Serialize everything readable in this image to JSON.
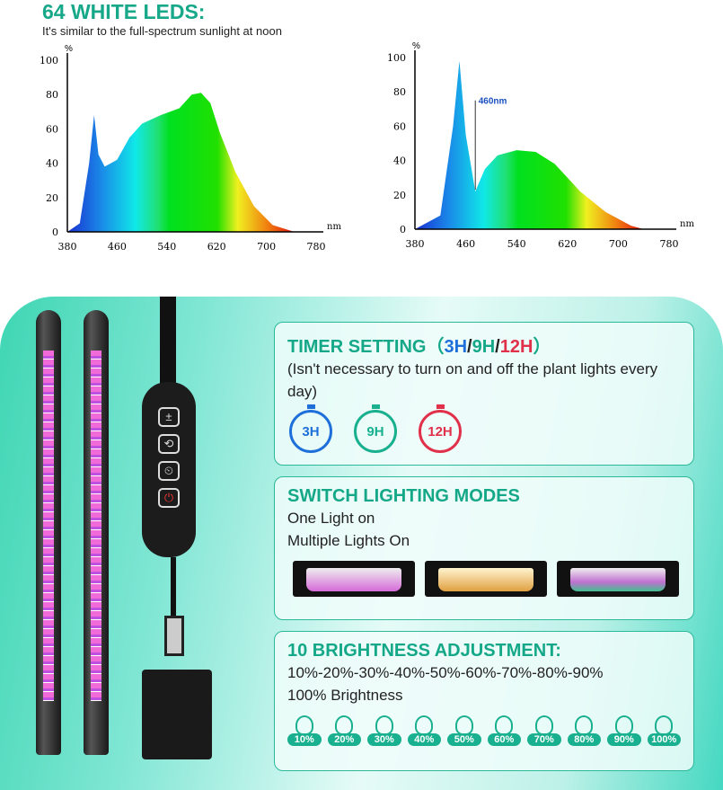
{
  "header": {
    "title": "64 WHITE LEDS:",
    "subtitle": "It's similar to the full-spectrum sunlight at noon"
  },
  "chart_data": [
    {
      "type": "area",
      "xlabel": "nm",
      "ylabel": "%",
      "xlim": [
        380,
        780
      ],
      "ylim": [
        0,
        100
      ],
      "xticks": [
        "380",
        "460",
        "540",
        "620",
        "700",
        "780"
      ],
      "yticks": [
        "0",
        "20",
        "40",
        "60",
        "80",
        "100"
      ],
      "fill": "visible spectrum gradient",
      "x": [
        380,
        400,
        415,
        423,
        430,
        440,
        460,
        480,
        500,
        530,
        560,
        580,
        595,
        610,
        625,
        650,
        680,
        710,
        745
      ],
      "y": [
        0,
        5,
        40,
        68,
        45,
        38,
        42,
        55,
        63,
        68,
        72,
        80,
        81,
        75,
        58,
        35,
        15,
        4,
        0
      ]
    },
    {
      "type": "area",
      "xlabel": "nm",
      "ylabel": "%",
      "xlim": [
        380,
        780
      ],
      "ylim": [
        0,
        100
      ],
      "xticks": [
        "380",
        "460",
        "540",
        "620",
        "700",
        "780"
      ],
      "yticks": [
        "0",
        "20",
        "40",
        "60",
        "80",
        "100"
      ],
      "fill": "visible spectrum gradient",
      "annotation": "460nm",
      "x": [
        380,
        420,
        440,
        450,
        460,
        475,
        490,
        510,
        540,
        570,
        600,
        640,
        680,
        720,
        740
      ],
      "y": [
        0,
        8,
        60,
        98,
        55,
        22,
        35,
        43,
        46,
        45,
        38,
        22,
        10,
        2,
        0
      ]
    }
  ],
  "timer": {
    "title": "TIMER SETTING（",
    "h3": "3H",
    "h9": "9H",
    "h12": "12H",
    "close": "）",
    "slash": "/",
    "desc": "(Isn't necessary to turn on and off the plant lights every day)",
    "items": [
      {
        "label": "3H",
        "color": "#1e6fd9"
      },
      {
        "label": "9H",
        "color": "#19b08f"
      },
      {
        "label": "12H",
        "color": "#e0304a"
      }
    ]
  },
  "modes": {
    "title": "SWITCH LIGHTING MODES",
    "line1": "One Light on",
    "line2": "Multiple Lights On"
  },
  "brightness": {
    "title": "10 BRIGHTNESS ADJUSTMENT:",
    "line1": "10%-20%-30%-40%-50%-60%-70%-80%-90%",
    "line2": "100% Brightness",
    "levels": [
      "10%",
      "20%",
      "30%",
      "40%",
      "50%",
      "60%",
      "70%",
      "80%",
      "90%",
      "100%"
    ]
  },
  "controller": {
    "buttons": [
      "±",
      "⟲",
      "⏲",
      "⏻"
    ]
  }
}
